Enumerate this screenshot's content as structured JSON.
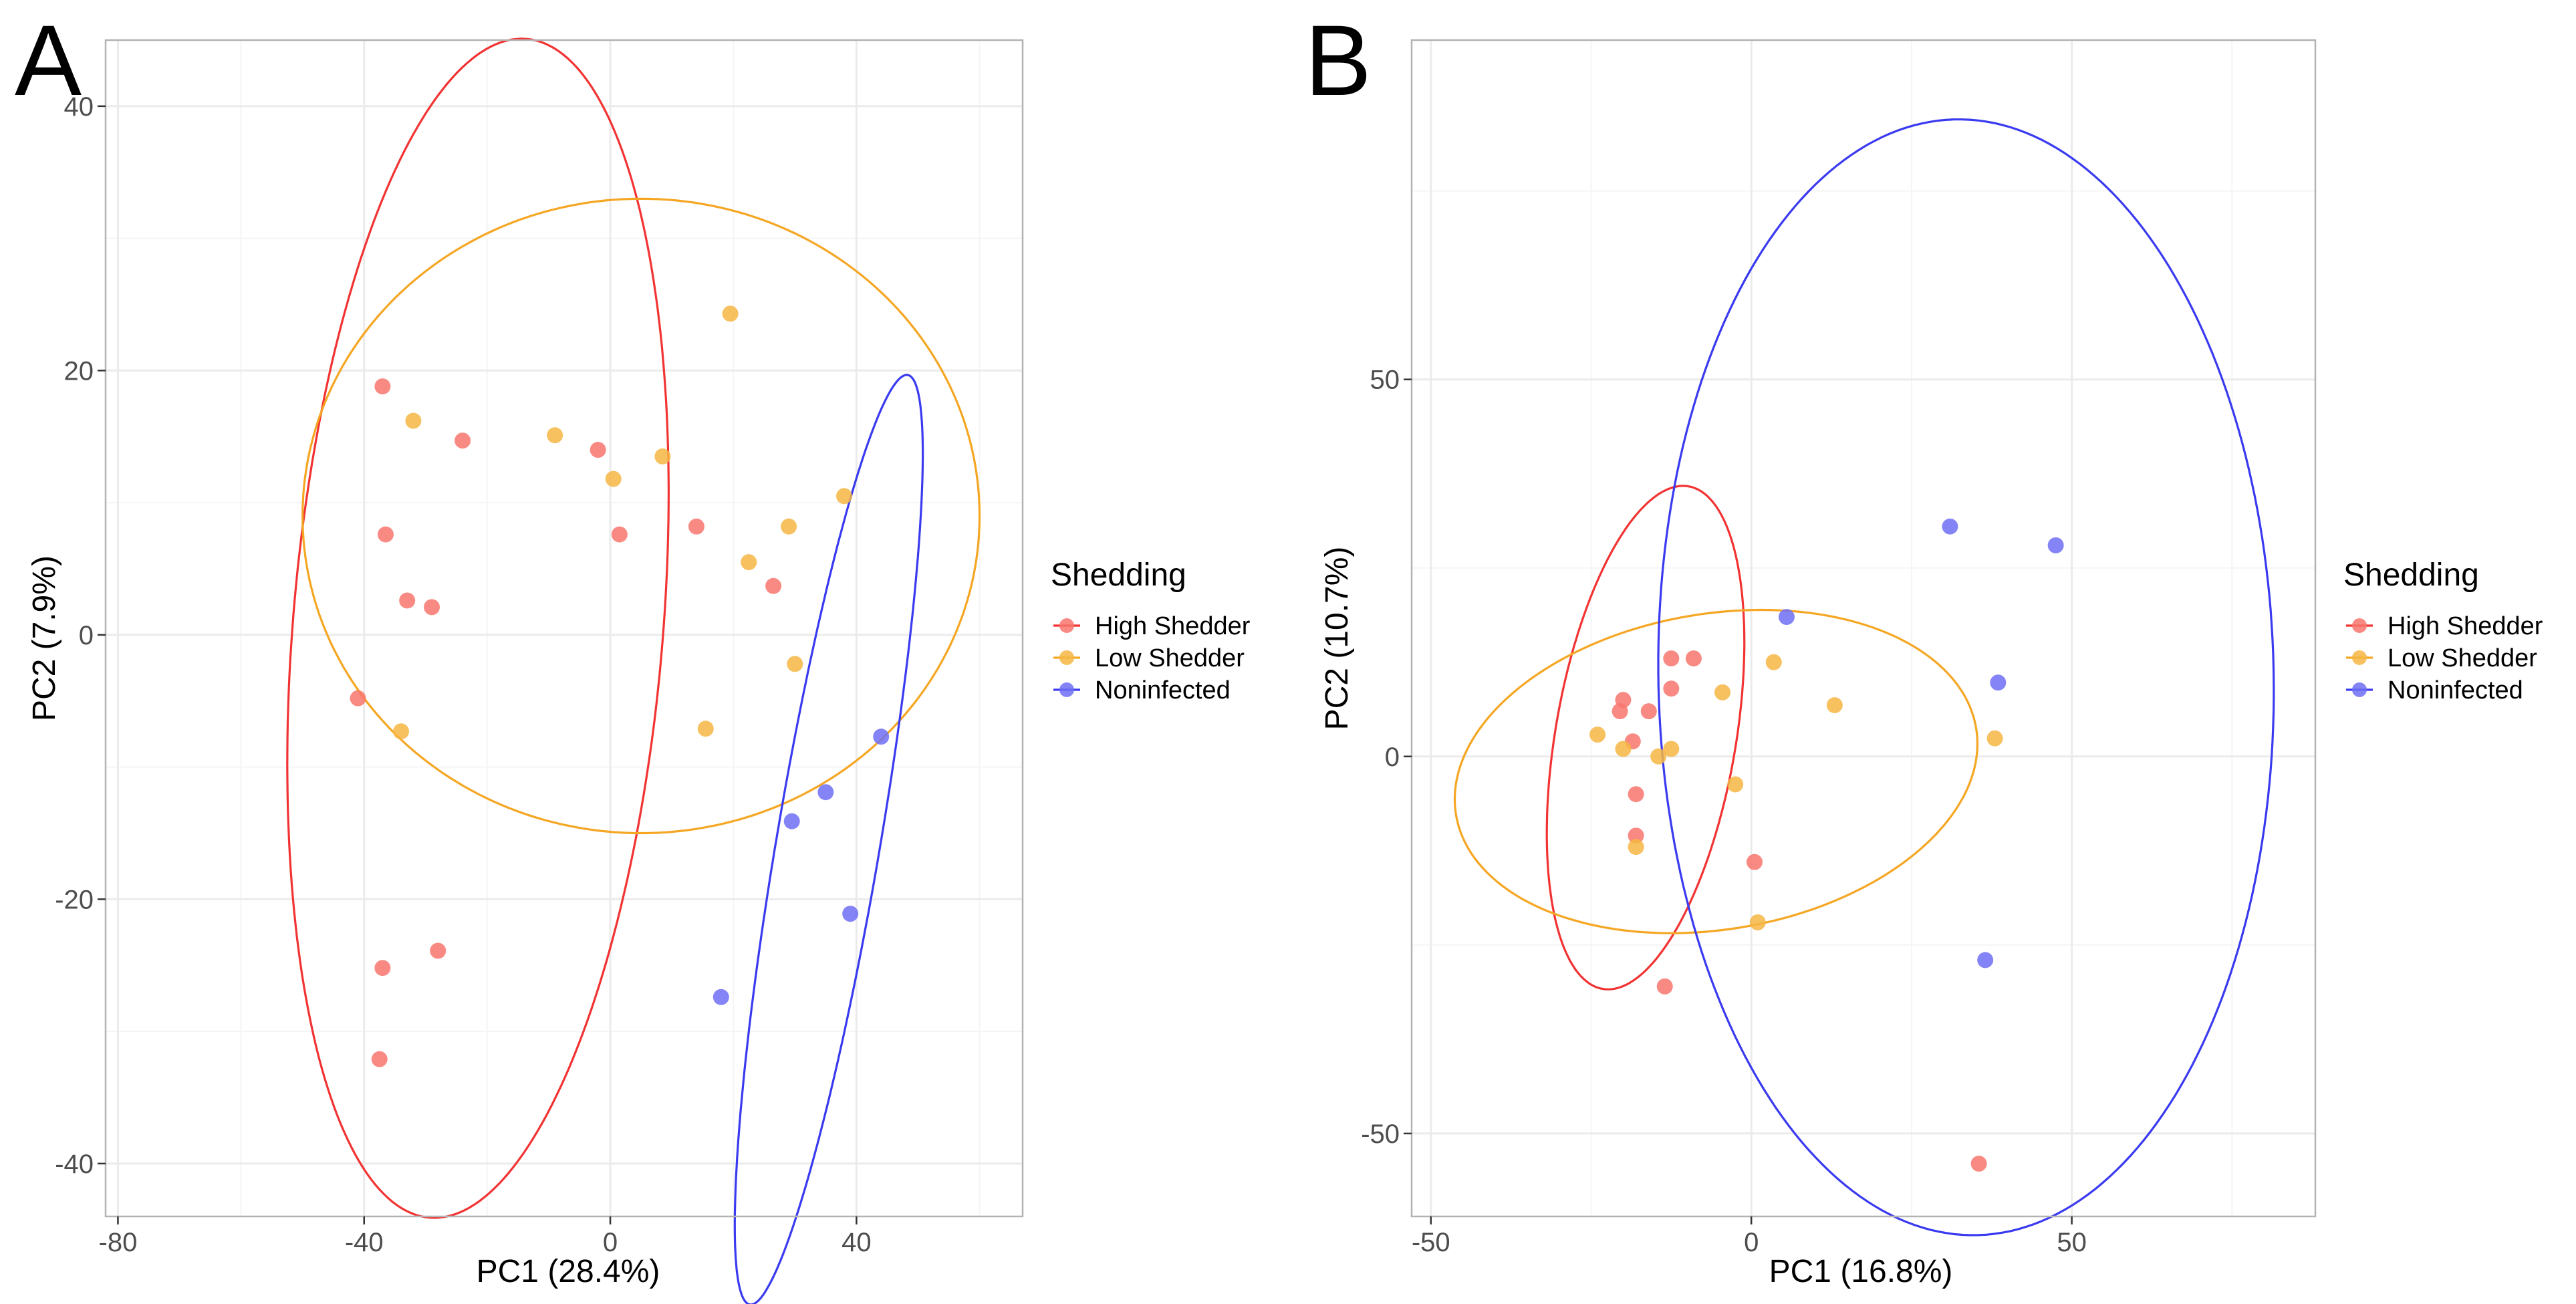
{
  "chart_data": [
    {
      "type": "scatter",
      "panel_label": "A",
      "xlabel": "PC1 (28.4%)",
      "ylabel": "PC2 (7.9%)",
      "xlim": [
        -82,
        67
      ],
      "ylim": [
        -44,
        45
      ],
      "xticks": [
        -80,
        -40,
        0,
        40
      ],
      "xtick_labels": [
        "-80",
        "-40",
        "0",
        "40"
      ],
      "yticks": [
        -40,
        -20,
        0,
        20,
        40
      ],
      "ytick_labels": [
        "-40",
        "-20",
        "0",
        "20",
        "40"
      ],
      "grid": true,
      "legend_position": "right",
      "series": [
        {
          "name": "High Shedder",
          "color": "#F8766D",
          "points": [
            [
              -37,
              18.8
            ],
            [
              -24,
              14.7
            ],
            [
              -36.5,
              7.6
            ],
            [
              -33,
              2.6
            ],
            [
              -29,
              2.1
            ],
            [
              -41,
              -4.8
            ],
            [
              -2,
              14
            ],
            [
              1.5,
              7.6
            ],
            [
              14,
              8.2
            ],
            [
              26.5,
              3.7
            ],
            [
              -37,
              -25.2
            ],
            [
              -28,
              -23.9
            ],
            [
              -37.5,
              -32.1
            ]
          ]
        },
        {
          "name": "Low Shedder",
          "color": "#F5B642",
          "points": [
            [
              19.5,
              24.3
            ],
            [
              -32,
              16.2
            ],
            [
              -9,
              15.1
            ],
            [
              0.5,
              11.8
            ],
            [
              8.5,
              13.5
            ],
            [
              29,
              8.2
            ],
            [
              38,
              10.5
            ],
            [
              22.5,
              5.5
            ],
            [
              -34,
              -7.3
            ],
            [
              15.5,
              -7.1
            ],
            [
              30,
              -2.2
            ]
          ]
        },
        {
          "name": "Noninfected",
          "color": "#6F6FF5",
          "points": [
            [
              44,
              -7.7
            ],
            [
              35,
              -11.9
            ],
            [
              29.5,
              -14.1
            ],
            [
              39,
              -21.1
            ],
            [
              18,
              -27.4
            ]
          ]
        }
      ],
      "ellipses": [
        {
          "series": "High Shedder",
          "color": "#F23333",
          "cx": -21.5,
          "cy": 0.5,
          "a": 45.6,
          "b": 29.5,
          "angle_deg": 74.2
        },
        {
          "series": "Low Shedder",
          "color": "#F5A623",
          "cx": 5,
          "cy": 9,
          "a": 55,
          "b": 24,
          "angle_deg": 0
        },
        {
          "series": "Noninfected",
          "color": "#3A3AF0",
          "cx": 35.5,
          "cy": -15.5,
          "a": 37.5,
          "b": 8,
          "angle_deg": 69.2
        }
      ]
    },
    {
      "type": "scatter",
      "panel_label": "B",
      "xlabel": "PC1 (16.8%)",
      "ylabel": "PC2 (10.7%)",
      "xlim": [
        -53,
        88
      ],
      "ylim": [
        -61,
        95
      ],
      "xticks": [
        -50,
        0,
        50
      ],
      "xtick_labels": [
        "-50",
        "0",
        "50"
      ],
      "yticks": [
        -50,
        0,
        50
      ],
      "ytick_labels": [
        "-50",
        "0",
        "50"
      ],
      "grid": true,
      "legend_position": "right",
      "series": [
        {
          "name": "High Shedder",
          "color": "#F8766D",
          "points": [
            [
              -9,
              13
            ],
            [
              -12.5,
              13
            ],
            [
              -12.5,
              9
            ],
            [
              -20,
              7.5
            ],
            [
              -20.5,
              6
            ],
            [
              -16,
              6
            ],
            [
              -18.5,
              2
            ],
            [
              -18,
              -5
            ],
            [
              -18,
              -10.5
            ],
            [
              0.5,
              -14
            ],
            [
              -13.5,
              -30.5
            ],
            [
              35.5,
              -54
            ]
          ]
        },
        {
          "name": "Low Shedder",
          "color": "#F5B642",
          "points": [
            [
              3.5,
              12.5
            ],
            [
              13,
              6.8
            ],
            [
              -4.5,
              8.5
            ],
            [
              -24,
              2.9
            ],
            [
              -20,
              1
            ],
            [
              -12.5,
              1
            ],
            [
              -14.5,
              0
            ],
            [
              38,
              2.4
            ],
            [
              -2.5,
              -3.7
            ],
            [
              -18,
              -12
            ],
            [
              1,
              -22
            ]
          ]
        },
        {
          "name": "Noninfected",
          "color": "#6F6FF5",
          "points": [
            [
              31,
              30.5
            ],
            [
              47.5,
              28
            ],
            [
              5.5,
              18.5
            ],
            [
              38.5,
              9.8
            ],
            [
              36.5,
              -27
            ]
          ]
        }
      ],
      "ellipses": [
        {
          "series": "High Shedder",
          "color": "#F23333",
          "cx": -16.5,
          "cy": 2.5,
          "a": 34,
          "b": 14,
          "angle_deg": 78
        },
        {
          "series": "Low Shedder",
          "color": "#F5A623",
          "cx": -5.5,
          "cy": -2,
          "a": 41,
          "b": 21,
          "angle_deg": 7
        },
        {
          "series": "Noninfected",
          "color": "#3A3AF0",
          "cx": 33.5,
          "cy": 10.5,
          "a": 74,
          "b": 48,
          "angle_deg": 91.5
        }
      ]
    }
  ],
  "legend": {
    "title": "Shedding",
    "items": [
      {
        "label": "High Shedder",
        "point_color": "#F8766D",
        "line_color": "#F23333"
      },
      {
        "label": "Low Shedder",
        "point_color": "#F5B642",
        "line_color": "#F5A623"
      },
      {
        "label": "Noninfected",
        "point_color": "#6F6FF5",
        "line_color": "#3A3AF0"
      }
    ]
  }
}
